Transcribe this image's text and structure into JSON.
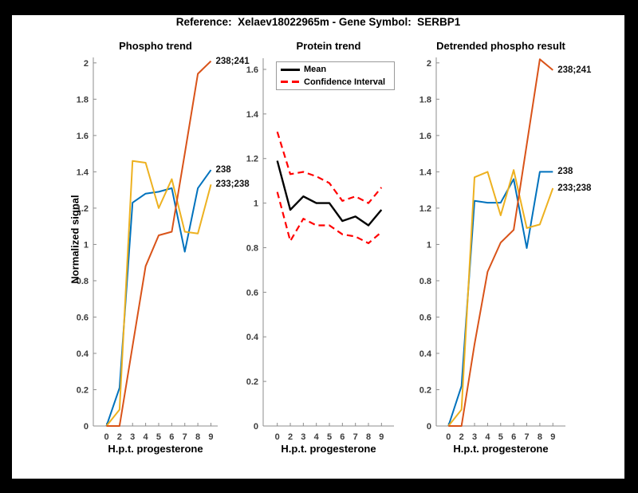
{
  "window": {
    "background": "#000000",
    "figure_background": "#ffffff"
  },
  "header": {
    "title": "Reference:  Xelaev18022965m - Gene Symbol:  SERBP1"
  },
  "chart_data": [
    {
      "type": "line",
      "title": "Phospho trend",
      "xlabel": "H.p.t. progesterone",
      "ylabel": "Normalized signal",
      "x_labels": [
        "0",
        "2",
        "3",
        "4",
        "5",
        "6",
        "7",
        "8",
        "9"
      ],
      "ylim": [
        0,
        2.03
      ],
      "grid": false,
      "yticks": [
        {
          "v": 0,
          "t": "0"
        },
        {
          "v": 0.2,
          "t": "0.2"
        },
        {
          "v": 0.4,
          "t": "0.4"
        },
        {
          "v": 0.6,
          "t": "0.6"
        },
        {
          "v": 0.8,
          "t": "0.8"
        },
        {
          "v": 1,
          "t": "1"
        },
        {
          "v": 1.2,
          "t": "1.2"
        },
        {
          "v": 1.4,
          "t": "1.4"
        },
        {
          "v": 1.6,
          "t": "1.6"
        },
        {
          "v": 1.8,
          "t": "1.8"
        },
        {
          "v": 2,
          "t": "2"
        }
      ],
      "series": [
        {
          "name": "238",
          "color": "#0072BD",
          "style": "solid",
          "width": 2,
          "values": [
            0,
            0.21,
            1.23,
            1.28,
            1.29,
            1.31,
            0.96,
            1.31,
            1.41
          ]
        },
        {
          "name": "233;238",
          "color": "#EDB120",
          "style": "solid",
          "width": 2,
          "values": [
            0,
            0.09,
            1.46,
            1.45,
            1.2,
            1.36,
            1.07,
            1.06,
            1.33
          ]
        },
        {
          "name": "238;241",
          "color": "#D95319",
          "style": "solid",
          "width": 2,
          "values": [
            0,
            0,
            0.44,
            0.88,
            1.05,
            1.07,
            1.5,
            1.94,
            2.01
          ]
        }
      ]
    },
    {
      "type": "line",
      "title": "Protein trend",
      "xlabel": "H.p.t. progesterone",
      "ylabel": "",
      "x_labels": [
        "0",
        "2",
        "3",
        "4",
        "5",
        "6",
        "7",
        "8",
        "9"
      ],
      "ylim": [
        0,
        1.65
      ],
      "grid": false,
      "legend": {
        "position": "top",
        "entries": [
          {
            "label": "Mean",
            "color": "#000000",
            "style": "solid"
          },
          {
            "label": "Confidence Interval",
            "color": "#ff0000",
            "style": "dashed"
          }
        ]
      },
      "yticks": [
        {
          "v": 0,
          "t": "0"
        },
        {
          "v": 0.2,
          "t": "0.2"
        },
        {
          "v": 0.4,
          "t": "0.4"
        },
        {
          "v": 0.6,
          "t": "0.6"
        },
        {
          "v": 0.8,
          "t": "0.8"
        },
        {
          "v": 1,
          "t": "1"
        },
        {
          "v": 1.2,
          "t": "1.2"
        },
        {
          "v": 1.4,
          "t": "1.4"
        },
        {
          "v": 1.6,
          "t": "1.6"
        }
      ],
      "series": [
        {
          "name": "Mean",
          "color": "#000000",
          "style": "solid",
          "width": 2.4,
          "values": [
            1.19,
            0.97,
            1.03,
            1.0,
            1.0,
            0.92,
            0.94,
            0.9,
            0.97
          ]
        },
        {
          "name": "CI upper",
          "color": "#ff0000",
          "style": "dashed",
          "width": 2.2,
          "values": [
            1.32,
            1.13,
            1.14,
            1.12,
            1.09,
            1.01,
            1.03,
            1.0,
            1.07
          ]
        },
        {
          "name": "CI lower",
          "color": "#ff0000",
          "style": "dashed",
          "width": 2.2,
          "values": [
            1.05,
            0.83,
            0.93,
            0.9,
            0.9,
            0.86,
            0.85,
            0.82,
            0.87
          ]
        }
      ]
    },
    {
      "type": "line",
      "title": "Detrended phospho result",
      "xlabel": "H.p.t. progesterone",
      "ylabel": "",
      "x_labels": [
        "0",
        "2",
        "3",
        "4",
        "5",
        "6",
        "7",
        "8",
        "9"
      ],
      "ylim": [
        0,
        2.03
      ],
      "grid": false,
      "yticks": [
        {
          "v": 0,
          "t": "0"
        },
        {
          "v": 0.2,
          "t": "0.2"
        },
        {
          "v": 0.4,
          "t": "0.4"
        },
        {
          "v": 0.6,
          "t": "0.6"
        },
        {
          "v": 0.8,
          "t": "0.8"
        },
        {
          "v": 1,
          "t": "1"
        },
        {
          "v": 1.2,
          "t": "1.2"
        },
        {
          "v": 1.4,
          "t": "1.4"
        },
        {
          "v": 1.6,
          "t": "1.6"
        },
        {
          "v": 1.8,
          "t": "1.8"
        },
        {
          "v": 2,
          "t": "2"
        }
      ],
      "series": [
        {
          "name": "238",
          "color": "#0072BD",
          "style": "solid",
          "width": 2,
          "values": [
            0,
            0.22,
            1.24,
            1.23,
            1.23,
            1.36,
            0.98,
            1.4,
            1.4
          ]
        },
        {
          "name": "233;238",
          "color": "#EDB120",
          "style": "solid",
          "width": 2,
          "values": [
            0,
            0.09,
            1.37,
            1.4,
            1.16,
            1.41,
            1.09,
            1.11,
            1.31
          ]
        },
        {
          "name": "238;241",
          "color": "#D95319",
          "style": "solid",
          "width": 2,
          "values": [
            0,
            0,
            0.45,
            0.85,
            1.01,
            1.08,
            1.55,
            2.02,
            1.96
          ]
        }
      ]
    }
  ]
}
